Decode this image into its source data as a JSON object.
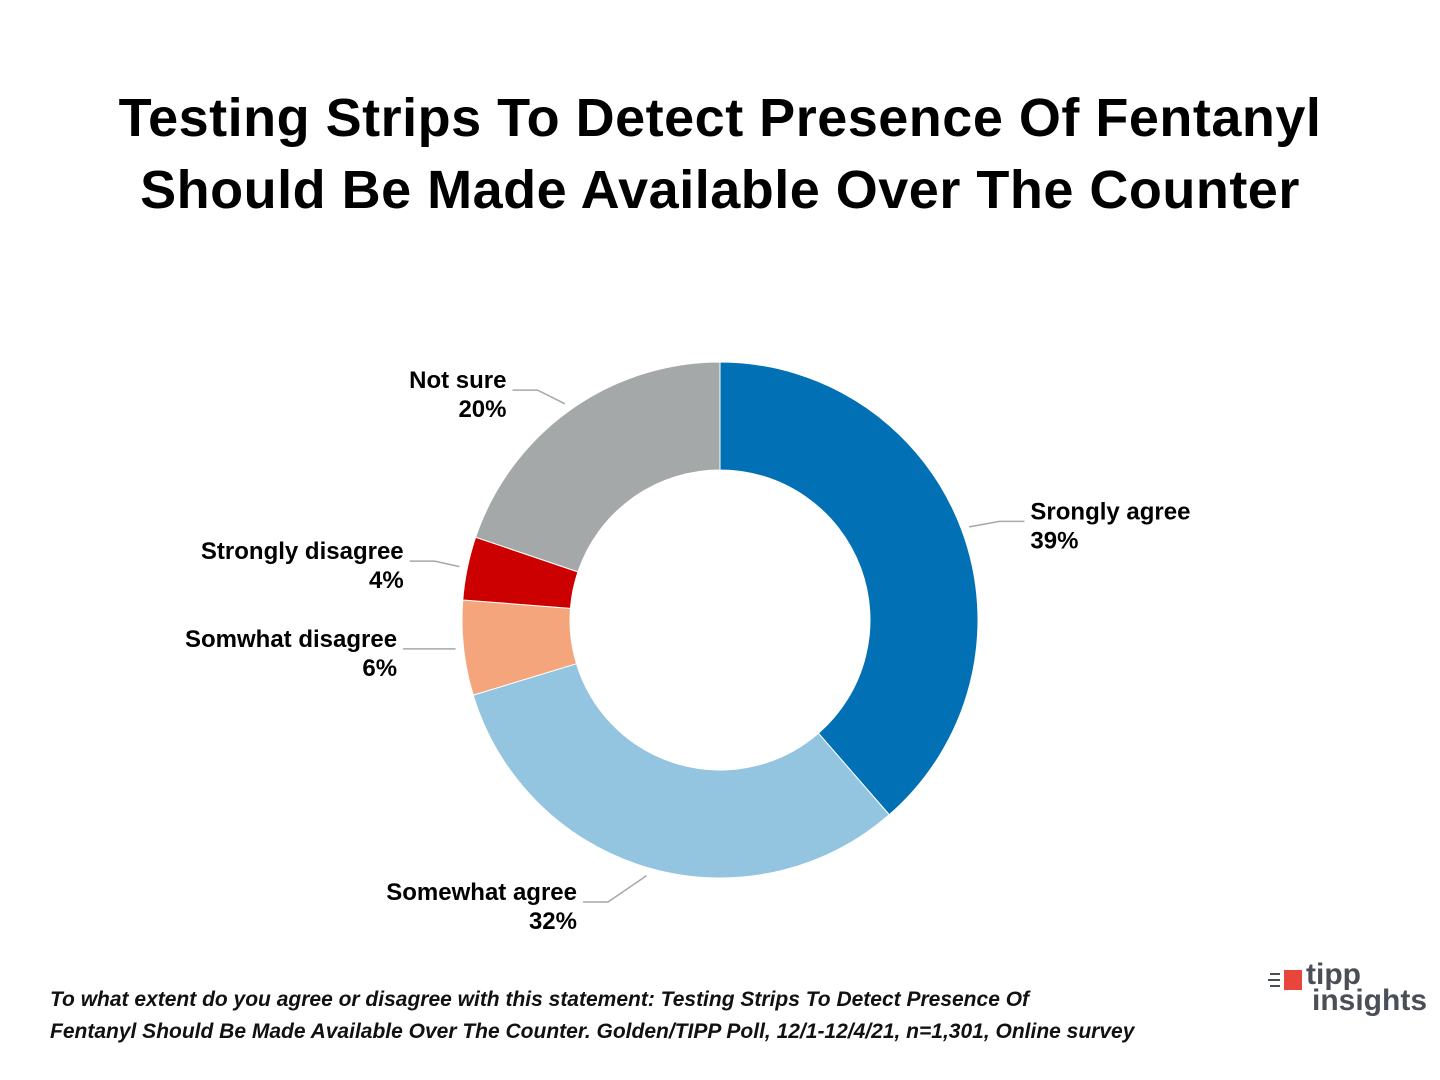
{
  "title_lines": [
    "Testing Strips To Detect Presence Of Fentanyl",
    "Should Be Made Available Over The Counter"
  ],
  "chart_data": {
    "type": "pie",
    "donut": true,
    "slices": [
      {
        "label": "Srongly agree",
        "value": 39,
        "value_label": "39%",
        "color": "#0270b4"
      },
      {
        "label": "Somewhat agree",
        "value": 32,
        "value_label": "32%",
        "color": "#93c4e0"
      },
      {
        "label": "Somwhat disagree",
        "value": 6,
        "value_label": "6%",
        "color": "#f4a57c"
      },
      {
        "label": "Strongly disagree",
        "value": 4,
        "value_label": "4%",
        "color": "#cc0000"
      },
      {
        "label": "Not sure",
        "value": 20,
        "value_label": "20%",
        "color": "#a5a8a9"
      }
    ]
  },
  "footnote_lines": [
    "To what extent do you agree or disagree with this statement:  Testing Strips To Detect Presence Of",
    "Fentanyl Should Be Made Available Over The Counter.  Golden/TIPP Poll, 12/1-12/4/21, n=1,301, Online survey"
  ],
  "logo": {
    "word1": "tipp",
    "word2": "insights",
    "icon": "speed-lines-icon",
    "accent_color": "#e8463b"
  }
}
